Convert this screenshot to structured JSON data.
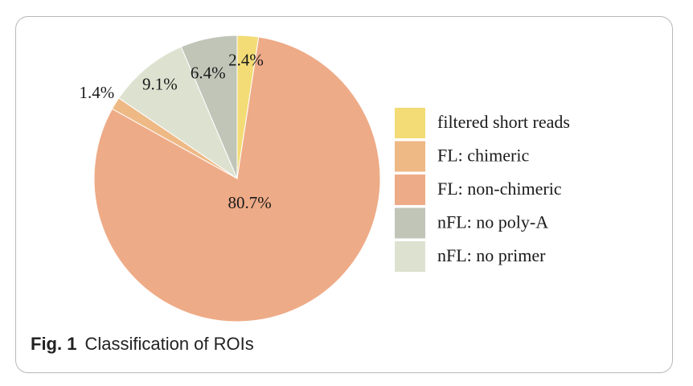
{
  "chart_data": {
    "type": "pie",
    "slices": [
      {
        "label": "filtered short reads",
        "value": 2.4,
        "display": "2.4%",
        "color": "#f3dc76"
      },
      {
        "label": "FL: non-chimeric",
        "value": 80.7,
        "display": "80.7%",
        "color": "#eeab87"
      },
      {
        "label": "FL: chimeric",
        "value": 1.4,
        "display": "1.4%",
        "color": "#eeb985"
      },
      {
        "label": "nFL: no primer",
        "value": 9.1,
        "display": "9.1%",
        "color": "#dde2d0"
      },
      {
        "label": "nFL: no poly-A",
        "value": 6.4,
        "display": "6.4%",
        "color": "#c0c5b8"
      }
    ],
    "legend": {
      "placement": "right",
      "entries": [
        {
          "label": "filtered short reads",
          "color": "#f3dc76"
        },
        {
          "label": "FL: chimeric",
          "color": "#eeb985"
        },
        {
          "label": "FL: non-chimeric",
          "color": "#eeab87"
        },
        {
          "label": "nFL: no poly-A",
          "color": "#c0c5b8"
        },
        {
          "label": "nFL: no primer",
          "color": "#dde2d0"
        }
      ]
    },
    "start": "top",
    "direction": "clockwise"
  },
  "caption": {
    "fig_label": "Fig. 1",
    "text": "Classification of ROIs"
  }
}
